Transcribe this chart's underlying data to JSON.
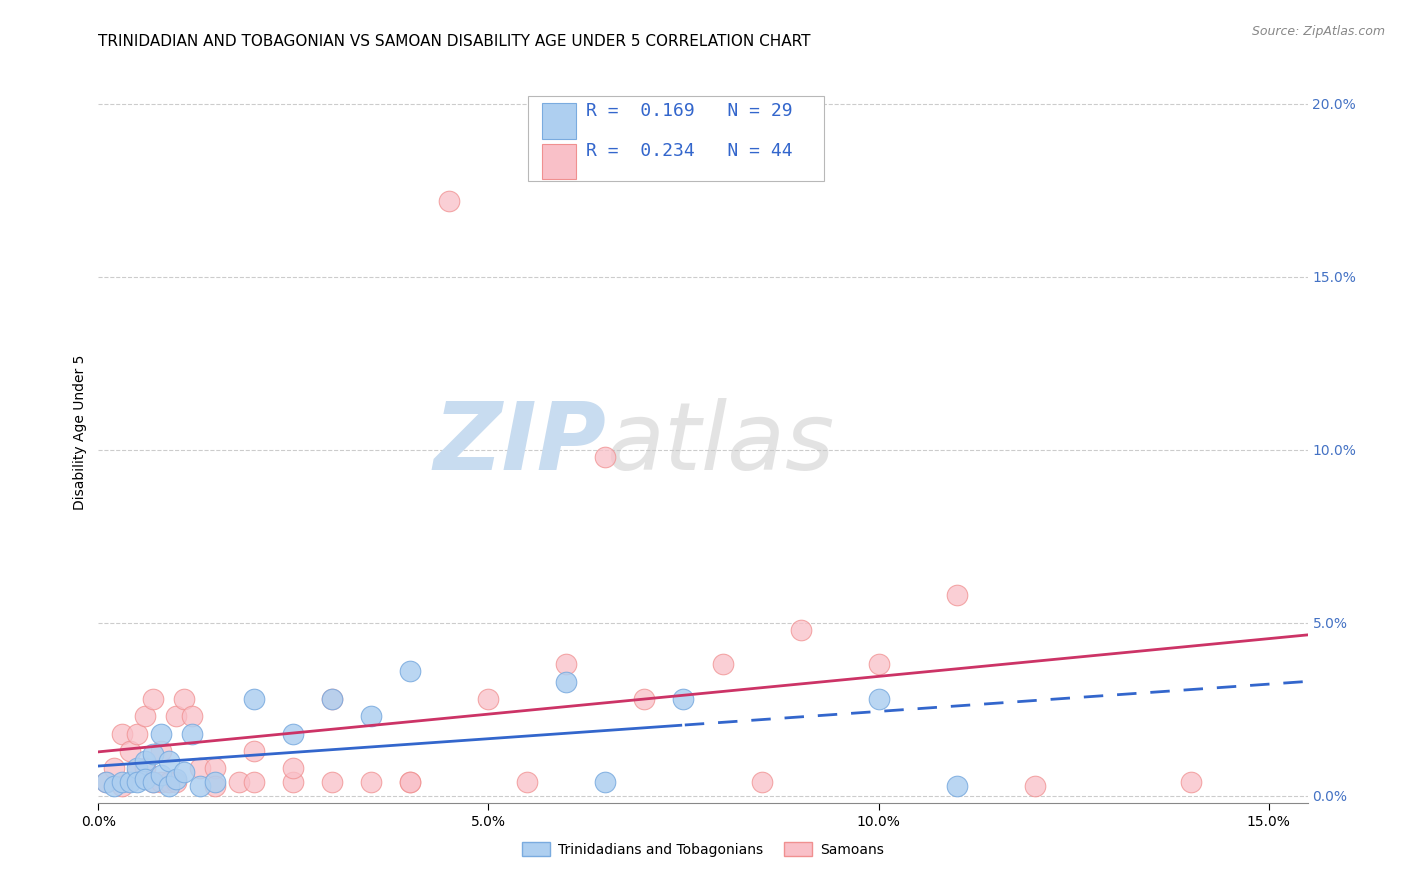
{
  "title": "TRINIDADIAN AND TOBAGONIAN VS SAMOAN DISABILITY AGE UNDER 5 CORRELATION CHART",
  "source": "Source: ZipAtlas.com",
  "ylabel": "Disability Age Under 5",
  "xlim": [
    0.0,
    0.155
  ],
  "ylim": [
    -0.002,
    0.212
  ],
  "xticks": [
    0.0,
    0.05,
    0.1,
    0.15
  ],
  "xticklabels": [
    "0.0%",
    "5.0%",
    "10.0%",
    "15.0%"
  ],
  "yticks_right": [
    0.0,
    0.05,
    0.1,
    0.15,
    0.2
  ],
  "yticklabels_right": [
    "0.0%",
    "5.0%",
    "10.0%",
    "15.0%",
    "20.0%"
  ],
  "legend_text_1": "R =  0.169   N = 29",
  "legend_text_2": "R =  0.234   N = 44",
  "color_blue_fill": "#AECFF0",
  "color_pink_fill": "#F9C0C8",
  "color_blue_edge": "#7AABDF",
  "color_pink_edge": "#F09090",
  "color_line_blue": "#3366CC",
  "color_line_pink": "#CC3366",
  "color_text_blue": "#3366CC",
  "color_grid": "#cccccc",
  "color_watermark": "#C8DCF0",
  "watermark_zip": "ZIP",
  "watermark_atlas": "atlas",
  "background_color": "#ffffff",
  "title_fontsize": 11,
  "axis_label_fontsize": 10,
  "tick_fontsize": 10,
  "right_tick_color": "#4472C4",
  "blue_points_x": [
    0.001,
    0.002,
    0.003,
    0.004,
    0.005,
    0.005,
    0.006,
    0.006,
    0.007,
    0.007,
    0.008,
    0.008,
    0.009,
    0.009,
    0.01,
    0.011,
    0.012,
    0.013,
    0.015,
    0.02,
    0.025,
    0.03,
    0.035,
    0.04,
    0.06,
    0.065,
    0.075,
    0.1,
    0.11
  ],
  "blue_points_y": [
    0.004,
    0.003,
    0.004,
    0.004,
    0.008,
    0.004,
    0.01,
    0.005,
    0.012,
    0.004,
    0.018,
    0.006,
    0.01,
    0.003,
    0.005,
    0.007,
    0.018,
    0.003,
    0.004,
    0.028,
    0.018,
    0.028,
    0.023,
    0.036,
    0.033,
    0.004,
    0.028,
    0.028,
    0.003
  ],
  "pink_points_x": [
    0.001,
    0.002,
    0.003,
    0.003,
    0.004,
    0.005,
    0.005,
    0.006,
    0.006,
    0.007,
    0.007,
    0.008,
    0.008,
    0.009,
    0.01,
    0.01,
    0.011,
    0.012,
    0.013,
    0.015,
    0.015,
    0.018,
    0.02,
    0.02,
    0.025,
    0.025,
    0.03,
    0.03,
    0.035,
    0.04,
    0.04,
    0.045,
    0.05,
    0.055,
    0.06,
    0.065,
    0.07,
    0.08,
    0.085,
    0.09,
    0.1,
    0.11,
    0.12,
    0.14
  ],
  "pink_points_y": [
    0.004,
    0.008,
    0.003,
    0.018,
    0.013,
    0.007,
    0.018,
    0.023,
    0.008,
    0.028,
    0.004,
    0.013,
    0.004,
    0.004,
    0.023,
    0.004,
    0.028,
    0.023,
    0.008,
    0.008,
    0.003,
    0.004,
    0.004,
    0.013,
    0.004,
    0.008,
    0.028,
    0.004,
    0.004,
    0.004,
    0.004,
    0.172,
    0.028,
    0.004,
    0.038,
    0.098,
    0.028,
    0.038,
    0.004,
    0.048,
    0.038,
    0.058,
    0.003,
    0.004
  ],
  "blue_line_solid_end": 0.075
}
